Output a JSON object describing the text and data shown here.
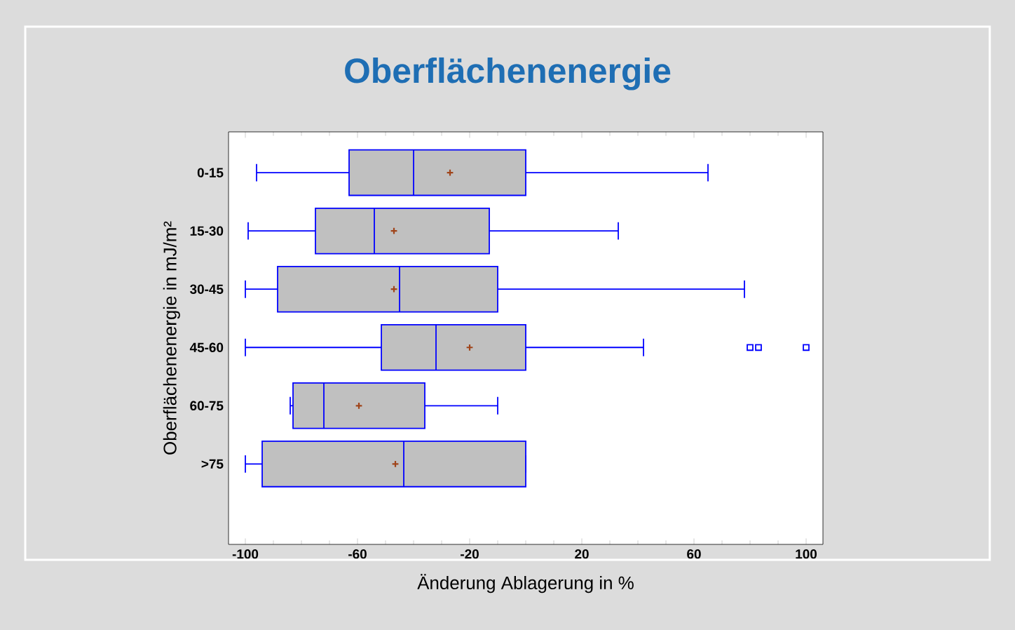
{
  "chart_data": {
    "type": "box",
    "title": "Oberflächenenergie",
    "xlabel": "Änderung Ablagerung in %",
    "ylabel": "Oberflächenenergie in mJ/m²",
    "categories": [
      "0-15",
      "15-30",
      "30-45",
      "45-60",
      "60-75",
      ">75"
    ],
    "orientation": "horizontal",
    "xlim": [
      -106,
      106
    ],
    "xticks": [
      -100,
      -60,
      -20,
      20,
      60,
      100
    ],
    "grid": false,
    "marker": "cross",
    "series": [
      {
        "color": "#c0c0c0",
        "boxes": [
          {
            "low": -96,
            "q1": -63,
            "median": -40,
            "q3": 0,
            "high": 65,
            "mean": -27
          },
          {
            "low": -99,
            "q1": -75,
            "median": -54,
            "q3": -13,
            "high": 33,
            "mean": -47
          },
          {
            "low": -100,
            "q1": -88.5,
            "median": -45,
            "q3": -10,
            "high": 78,
            "mean": -47
          },
          {
            "low": -100,
            "q1": -51.5,
            "median": -32,
            "q3": 0,
            "high": 42,
            "mean": -20,
            "outliers": [
              80,
              83,
              100
            ]
          },
          {
            "low": -84,
            "q1": -83,
            "median": -72,
            "q3": -36,
            "high": -10,
            "mean": -59.5
          },
          {
            "low": -100,
            "q1": -94,
            "median": -43.5,
            "q3": 0,
            "high": 0,
            "mean": -46.5
          }
        ]
      }
    ]
  }
}
